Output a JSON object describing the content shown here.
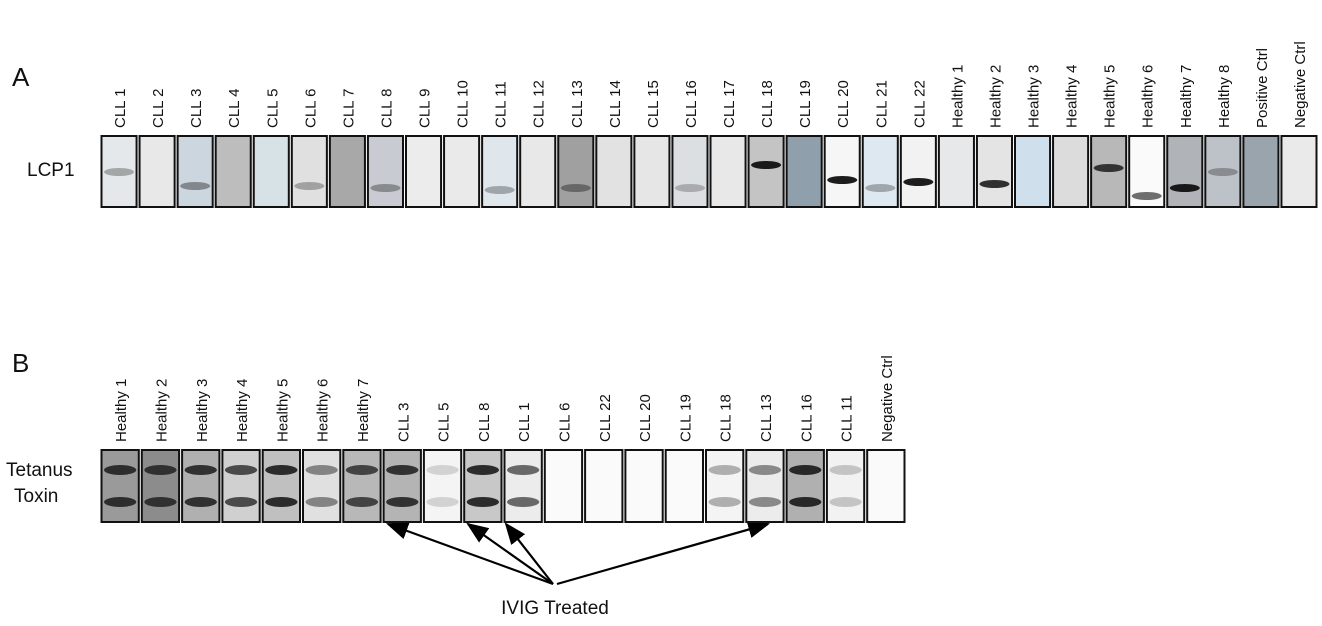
{
  "panel_a": {
    "label": "A",
    "row_label": "LCP1",
    "lanes": [
      "CLL 1",
      "CLL 2",
      "CLL 3",
      "CLL 4",
      "CLL 5",
      "CLL 6",
      "CLL 7",
      "CLL 8",
      "CLL 9",
      "CLL 10",
      "CLL 11",
      "CLL 12",
      "CLL 13",
      "CLL 14",
      "CLL 15",
      "CLL 16",
      "CLL 17",
      "CLL 18",
      "CLL 19",
      "CLL 20",
      "CLL 21",
      "CLL 22",
      "Healthy 1",
      "Healthy 2",
      "Healthy 3",
      "Healthy 4",
      "Healthy 5",
      "Healthy 6",
      "Healthy 7",
      "Healthy 8",
      "Positive Ctrl",
      "Negative Ctrl"
    ]
  },
  "panel_b": {
    "label": "B",
    "row_label": [
      "Tetanus",
      "Toxin"
    ],
    "lanes": [
      "Healthy 1",
      "Healthy 2",
      "Healthy 3",
      "Healthy 4",
      "Healthy 5",
      "Healthy 6",
      "Healthy 7",
      "CLL 3",
      "CLL 5",
      "CLL 8",
      "CLL 1",
      "CLL 6",
      "CLL 22",
      "CLL 20",
      "CLL 19",
      "CLL 18",
      "CLL 13",
      "CLL 16",
      "CLL 11",
      "Negative Ctrl"
    ],
    "annotation": "IVIG Treated"
  }
}
